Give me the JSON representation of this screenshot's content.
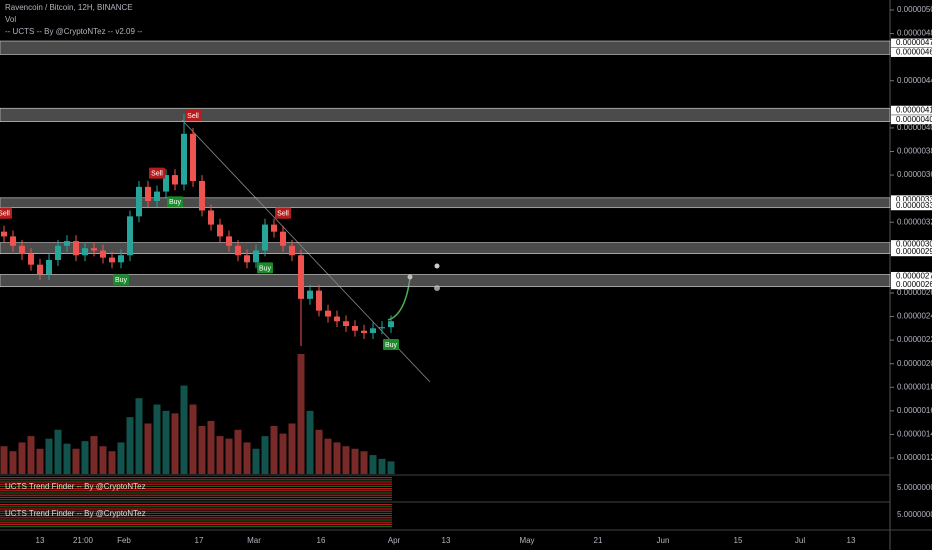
{
  "header": {
    "symbol": "Ravencoin / Bitcoin, 12H, BINANCE",
    "volume": "Vol",
    "indicator": "-- UCTS -- By @CryptoNTez -- v2.09 --"
  },
  "chart_data": {
    "type": "candlestick",
    "open": [
      3.12e-06,
      3.08e-06,
      3e-06,
      2.93e-06,
      2.84e-06,
      2.76e-06,
      2.88e-06,
      3e-06,
      3.04e-06,
      2.92e-06,
      2.98e-06,
      2.96e-06,
      2.9e-06,
      2.86e-06,
      2.92e-06,
      3.25e-06,
      3.5e-06,
      3.38e-06,
      3.46e-06,
      3.6e-06,
      3.52e-06,
      3.95e-06,
      3.55e-06,
      3.3e-06,
      3.18e-06,
      3.08e-06,
      3e-06,
      2.92e-06,
      2.86e-06,
      2.96e-06,
      3.18e-06,
      3.12e-06,
      3e-06,
      2.92e-06,
      2.55e-06,
      2.62e-06,
      2.45e-06,
      2.4e-06,
      2.36e-06,
      2.32e-06,
      2.28e-06,
      2.26e-06,
      2.3e-06,
      2.31e-06
    ],
    "high": [
      3.17e-06,
      3.13e-06,
      3.05e-06,
      2.98e-06,
      2.89e-06,
      2.93e-06,
      3.05e-06,
      3.09e-06,
      3.09e-06,
      3.03e-06,
      3.03e-06,
      3.01e-06,
      2.95e-06,
      2.97e-06,
      3.3e-06,
      3.55e-06,
      3.55e-06,
      3.51e-06,
      3.65e-06,
      3.65e-06,
      4.12e-06,
      4e-06,
      3.6e-06,
      3.35e-06,
      3.23e-06,
      3.13e-06,
      3.05e-06,
      2.97e-06,
      3.01e-06,
      3.23e-06,
      3.23e-06,
      3.17e-06,
      3.05e-06,
      2.97e-06,
      2.67e-06,
      2.67e-06,
      2.5e-06,
      2.45e-06,
      2.41e-06,
      2.37e-06,
      2.33e-06,
      2.35e-06,
      2.36e-06,
      2.41e-06
    ],
    "low": [
      3.03e-06,
      2.95e-06,
      2.88e-06,
      2.79e-06,
      2.71e-06,
      2.71e-06,
      2.83e-06,
      2.95e-06,
      2.87e-06,
      2.87e-06,
      2.91e-06,
      2.85e-06,
      2.81e-06,
      2.81e-06,
      2.87e-06,
      3.2e-06,
      3.33e-06,
      3.33e-06,
      3.41e-06,
      3.47e-06,
      3.47e-06,
      3.5e-06,
      3.25e-06,
      3.13e-06,
      3.03e-06,
      2.95e-06,
      2.87e-06,
      2.81e-06,
      2.81e-06,
      2.91e-06,
      3.07e-06,
      2.95e-06,
      2.87e-06,
      2.15e-06,
      2.5e-06,
      2.4e-06,
      2.35e-06,
      2.31e-06,
      2.27e-06,
      2.23e-06,
      2.21e-06,
      2.21e-06,
      2.25e-06,
      2.26e-06
    ],
    "close": [
      3.08e-06,
      3e-06,
      2.93e-06,
      2.84e-06,
      2.76e-06,
      2.88e-06,
      3e-06,
      3.04e-06,
      2.92e-06,
      2.98e-06,
      2.96e-06,
      2.9e-06,
      2.86e-06,
      2.92e-06,
      3.25e-06,
      3.5e-06,
      3.38e-06,
      3.46e-06,
      3.6e-06,
      3.52e-06,
      3.95e-06,
      3.55e-06,
      3.3e-06,
      3.18e-06,
      3.08e-06,
      3e-06,
      2.92e-06,
      2.86e-06,
      2.96e-06,
      3.18e-06,
      3.12e-06,
      3e-06,
      2.92e-06,
      2.55e-06,
      2.62e-06,
      2.45e-06,
      2.4e-06,
      2.36e-06,
      2.32e-06,
      2.28e-06,
      2.26e-06,
      2.3e-06,
      2.31e-06,
      2.36e-06
    ],
    "volume": [
      22,
      18,
      25,
      30,
      20,
      28,
      35,
      24,
      20,
      26,
      30,
      22,
      18,
      25,
      45,
      60,
      40,
      55,
      50,
      48,
      70,
      55,
      38,
      42,
      30,
      28,
      35,
      25,
      20,
      30,
      38,
      32,
      40,
      95,
      50,
      35,
      28,
      25,
      22,
      20,
      18,
      15,
      12,
      10
    ],
    "up_color": "#26a69a",
    "down_color": "#ef5350",
    "ylim": [
      1.056e-06,
      5.085e-06
    ],
    "yticks": [
      {
        "value": 5e-06,
        "label": "0.00000500"
      },
      {
        "value": 4.8e-06,
        "label": "0.00000480"
      },
      {
        "value": 4.4e-06,
        "label": "0.00000440"
      },
      {
        "value": 4e-06,
        "label": "0.00000400"
      },
      {
        "value": 3.8e-06,
        "label": "0.00000380"
      },
      {
        "value": 3.6e-06,
        "label": "0.00000360"
      },
      {
        "value": 3.2e-06,
        "label": "0.00000320"
      },
      {
        "value": 2.6e-06,
        "label": "0.00000260"
      },
      {
        "value": 2.4e-06,
        "label": "0.00000240"
      },
      {
        "value": 2.2e-06,
        "label": "0.00000220"
      },
      {
        "value": 2e-06,
        "label": "0.00000200"
      },
      {
        "value": 1.8e-06,
        "label": "0.00000180"
      },
      {
        "value": 1.6e-06,
        "label": "0.00000160"
      },
      {
        "value": 1.4e-06,
        "label": "0.00000140"
      },
      {
        "value": 1.2e-06,
        "label": "0.00000120"
      }
    ],
    "levels": [
      [
        {
          "value": 4.72e-06,
          "label": "0.00000472"
        },
        {
          "value": 4.64e-06,
          "label": "0.00000464"
        }
      ],
      [
        {
          "value": 4.15e-06,
          "label": "0.00000415"
        },
        {
          "value": 4.07e-06,
          "label": "0.00000407"
        }
      ],
      [
        {
          "value": 3.39e-06,
          "label": "0.00000339"
        },
        {
          "value": 3.34e-06,
          "label": "0.00000334"
        }
      ],
      [
        {
          "value": 3.01e-06,
          "label": "0.00000301"
        },
        {
          "value": 2.95e-06,
          "label": "0.00000295"
        }
      ],
      [
        {
          "value": 2.74e-06,
          "label": "0.00000274"
        },
        {
          "value": 2.67e-06,
          "label": "0.00000267"
        }
      ]
    ],
    "signals": [
      {
        "label": "Sell",
        "index": 0
      },
      {
        "label": "Buy",
        "index": 13
      },
      {
        "label": "Sell",
        "index": 17
      },
      {
        "label": "Buy",
        "index": 19
      },
      {
        "label": "Sell",
        "index": 21
      },
      {
        "label": "Sell",
        "index": 31
      },
      {
        "label": "Buy",
        "index": 29
      },
      {
        "label": "Buy",
        "index": 43
      }
    ],
    "x_labels": [
      "13",
      "21:00",
      "Feb",
      "17",
      "Mar",
      "16",
      "Apr",
      "13",
      "May",
      "21",
      "Jun",
      "15",
      "Jul",
      "13"
    ],
    "panes": [
      {
        "title": "UCTS Trend Finder -- By @CryptoNTez",
        "value": {
          "value": 5,
          "label": "5.00000000"
        }
      },
      {
        "title": "UCTS Trend Finder -- By @CryptoNTez",
        "value": {
          "value": 5,
          "label": "5.00000000"
        }
      }
    ]
  }
}
